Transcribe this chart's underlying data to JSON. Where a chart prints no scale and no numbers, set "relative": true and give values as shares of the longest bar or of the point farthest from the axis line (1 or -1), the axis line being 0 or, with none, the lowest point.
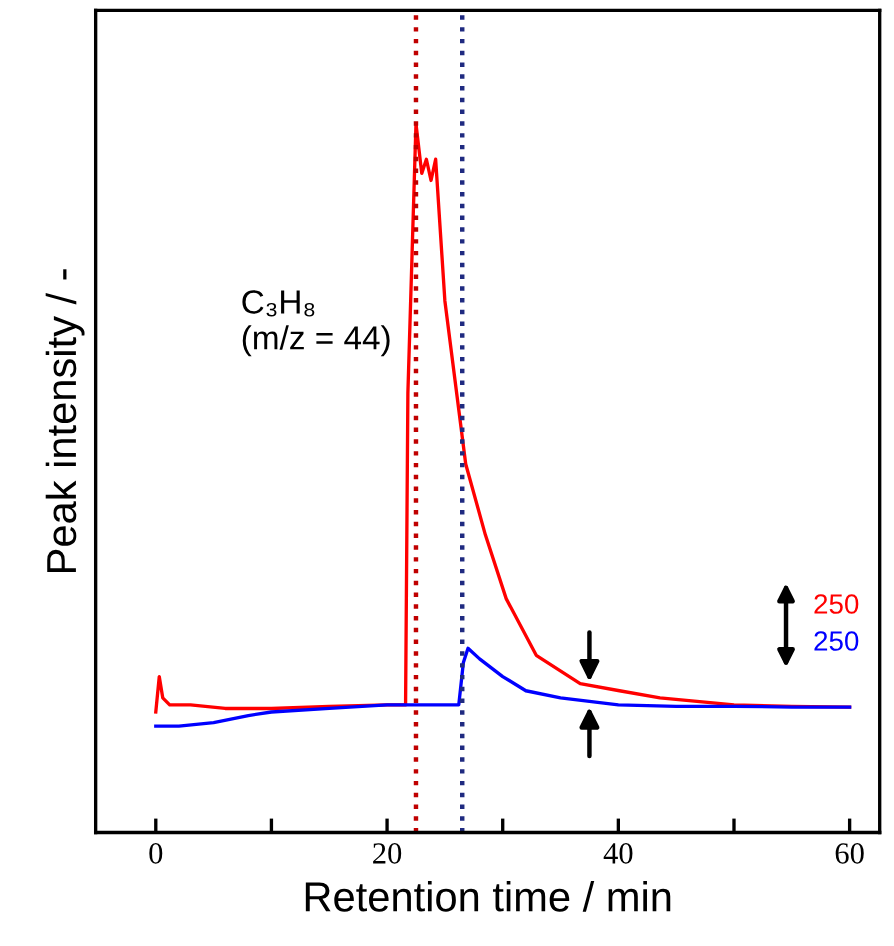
{
  "chart_data": {
    "type": "line",
    "relative": true,
    "xlabel": "Retention time / min",
    "ylabel": "Peak intensity / -",
    "xlim": [
      -5.2,
      62.6
    ],
    "xticks": [
      0,
      {
        "value": 10,
        "label": null
      },
      20,
      {
        "value": 30,
        "label": null
      },
      40,
      {
        "value": 50,
        "label": null
      },
      60
    ],
    "tick_labels": "x",
    "grid": false,
    "legend": false,
    "marker": "none",
    "line_style": "solid",
    "series": [
      {
        "color": "#ff0000",
        "x": [
          0,
          0.3,
          0.6,
          1.2,
          3,
          6,
          10,
          15,
          20,
          21.6,
          21.8,
          22.5,
          23.0,
          23.4,
          23.8,
          24.2,
          25,
          26.8,
          28.5,
          30.3,
          32.9,
          36.7,
          40.1,
          43.6,
          50,
          55,
          60
        ],
        "values": [
          0.17,
          0.22,
          0.19,
          0.18,
          0.18,
          0.175,
          0.175,
          0.178,
          0.18,
          0.18,
          0.62,
          1.0,
          0.93,
          0.95,
          0.92,
          0.95,
          0.75,
          0.52,
          0.42,
          0.33,
          0.25,
          0.21,
          0.2,
          0.19,
          0.18,
          0.178,
          0.177
        ]
      },
      {
        "color": "#0000ff",
        "x": [
          0,
          2,
          5,
          8,
          10,
          15,
          20,
          24,
          26.2,
          26.6,
          27,
          28,
          30,
          32,
          35,
          40,
          45,
          50,
          55,
          60
        ],
        "values": [
          0.15,
          0.15,
          0.155,
          0.165,
          0.17,
          0.175,
          0.18,
          0.18,
          0.18,
          0.24,
          0.26,
          0.245,
          0.22,
          0.2,
          0.19,
          0.18,
          0.178,
          0.178,
          0.177,
          0.177
        ]
      }
    ],
    "ref_lines": [
      {
        "axis": "x",
        "value": 22.5,
        "color": "#c00000",
        "line_style": "dotted"
      },
      {
        "axis": "x",
        "value": 26.5,
        "color": "#1f2a80",
        "line_style": "dotted"
      }
    ],
    "annotations": [
      "C₃H₈\n(m/z = 44)",
      "250",
      "250"
    ]
  }
}
